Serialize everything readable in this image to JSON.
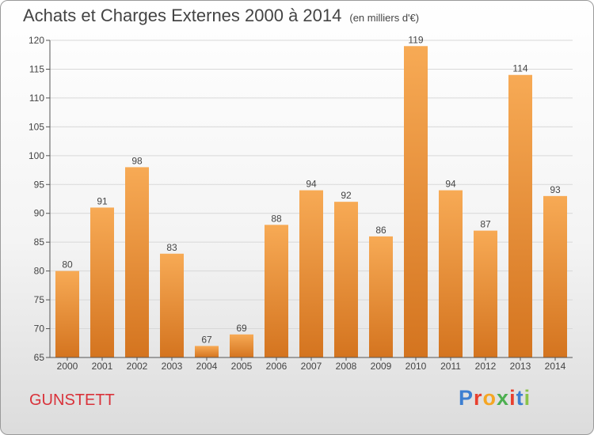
{
  "title": "Achats et Charges Externes 2000 à 2014",
  "subtitle": "(en milliers d'€)",
  "commune": "GUNSTETT",
  "logo": {
    "text": "Proxiti",
    "colors": [
      "#3d7fd1",
      "#e8402f",
      "#f5a623",
      "#4caf50",
      "#e8402f",
      "#3d7fd1",
      "#8bc34a"
    ]
  },
  "colors": {
    "bar_top": "#f7aa55",
    "bar_bottom": "#d4741f",
    "axis": "#555555"
  },
  "chart_data": {
    "type": "bar",
    "categories": [
      "2000",
      "2001",
      "2002",
      "2003",
      "2004",
      "2005",
      "2006",
      "2007",
      "2008",
      "2009",
      "2010",
      "2011",
      "2012",
      "2013",
      "2014"
    ],
    "values": [
      80,
      91,
      98,
      83,
      67,
      69,
      88,
      94,
      92,
      86,
      119,
      94,
      87,
      114,
      93
    ],
    "ylim": [
      65,
      120
    ],
    "yticks": [
      65,
      70,
      75,
      80,
      85,
      90,
      95,
      100,
      105,
      110,
      115,
      120
    ],
    "grid": true,
    "data_labels": true
  }
}
